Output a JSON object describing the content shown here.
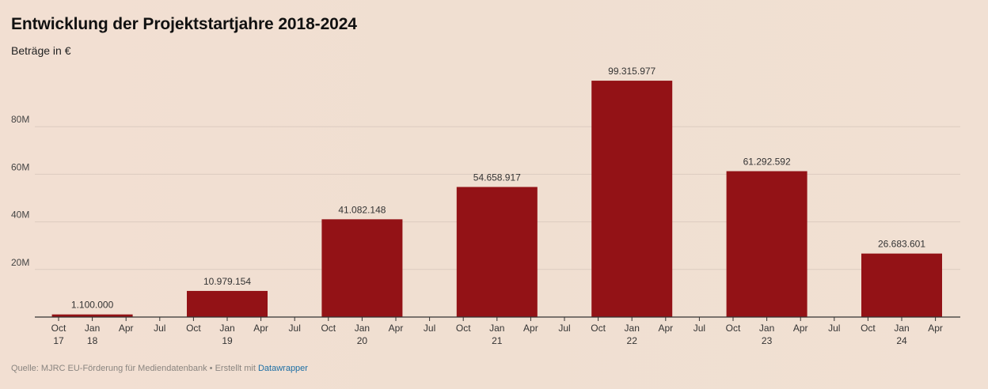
{
  "header": {
    "title": "Entwicklung der Projektstartjahre 2018-2024",
    "subtitle": "Beträge in €"
  },
  "footer": {
    "source_text": "Quelle: MJRC EU-Förderung für Mediendatenbank • Erstellt mit ",
    "link_text": "Datawrapper"
  },
  "colors": {
    "bar": "#931216",
    "grid": "#dcccbf",
    "axis": "#333333"
  },
  "chart_data": {
    "type": "bar",
    "title": "Entwicklung der Projektstartjahre 2018-2024",
    "subtitle": "Beträge in €",
    "ylim": [
      0,
      100000000
    ],
    "y_ticks": [
      20000000,
      40000000,
      60000000,
      80000000
    ],
    "y_tick_labels": [
      "20M",
      "40M",
      "60M",
      "80M"
    ],
    "grid": true,
    "categories": [
      "2018",
      "2019",
      "2020",
      "2021",
      "2022",
      "2023",
      "2024"
    ],
    "values": [
      1100000,
      10979154,
      41082148,
      54658917,
      99315977,
      61292592,
      26683601
    ],
    "value_labels": [
      "1.100.000",
      "10.979.154",
      "41.082.148",
      "54.658.917",
      "99.315.977",
      "61.292.592",
      "26.683.601"
    ],
    "x_ticks": [
      {
        "month": "Oct",
        "year": "17"
      },
      {
        "month": "Jan",
        "year": "18"
      },
      {
        "month": "Apr",
        "year": ""
      },
      {
        "month": "Jul",
        "year": ""
      },
      {
        "month": "Oct",
        "year": ""
      },
      {
        "month": "Jan",
        "year": "19"
      },
      {
        "month": "Apr",
        "year": ""
      },
      {
        "month": "Jul",
        "year": ""
      },
      {
        "month": "Oct",
        "year": ""
      },
      {
        "month": "Jan",
        "year": "20"
      },
      {
        "month": "Apr",
        "year": ""
      },
      {
        "month": "Jul",
        "year": ""
      },
      {
        "month": "Oct",
        "year": ""
      },
      {
        "month": "Jan",
        "year": "21"
      },
      {
        "month": "Apr",
        "year": ""
      },
      {
        "month": "Jul",
        "year": ""
      },
      {
        "month": "Oct",
        "year": ""
      },
      {
        "month": "Jan",
        "year": "22"
      },
      {
        "month": "Apr",
        "year": ""
      },
      {
        "month": "Jul",
        "year": ""
      },
      {
        "month": "Oct",
        "year": ""
      },
      {
        "month": "Jan",
        "year": "23"
      },
      {
        "month": "Apr",
        "year": ""
      },
      {
        "month": "Jul",
        "year": ""
      },
      {
        "month": "Oct",
        "year": ""
      },
      {
        "month": "Jan",
        "year": "24"
      },
      {
        "month": "Apr",
        "year": ""
      }
    ]
  }
}
